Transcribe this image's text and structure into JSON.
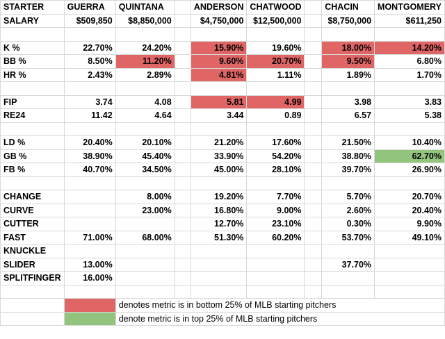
{
  "colors": {
    "bottom25": "#e06666",
    "top25": "#93c47d",
    "gridline": "#d9d9d9"
  },
  "header": {
    "label": "STARTER",
    "pitchers": [
      "GUERRA",
      "QUINTANA",
      "ANDERSON",
      "CHATWOOD",
      "CHACIN",
      "MONTGOMERY"
    ]
  },
  "salary": {
    "label": "SALARY",
    "values": [
      "$509,850",
      "$8,850,000",
      "$4,750,000",
      "$12,500,000",
      "$8,750,000",
      "$611,250"
    ]
  },
  "rows": [
    {
      "label": "K %",
      "values": [
        "22.70%",
        "24.20%",
        "15.90%",
        "19.60%",
        "18.00%",
        "14.20%"
      ],
      "flags": [
        "",
        "",
        "bottom25",
        "",
        "bottom25",
        "bottom25"
      ]
    },
    {
      "label": "BB %",
      "values": [
        "8.50%",
        "11.20%",
        "9.60%",
        "20.70%",
        "9.50%",
        "6.80%"
      ],
      "flags": [
        "",
        "bottom25",
        "bottom25",
        "bottom25",
        "bottom25",
        ""
      ]
    },
    {
      "label": "HR %",
      "values": [
        "2.43%",
        "2.89%",
        "4.81%",
        "1.11%",
        "1.89%",
        "1.70%"
      ],
      "flags": [
        "",
        "",
        "bottom25",
        "",
        "",
        ""
      ]
    },
    {
      "blank": true
    },
    {
      "label": "FIP",
      "values": [
        "3.74",
        "4.08",
        "5.81",
        "4.99",
        "3.98",
        "3.83"
      ],
      "flags": [
        "",
        "",
        "bottom25",
        "bottom25",
        "",
        ""
      ]
    },
    {
      "label": "RE24",
      "values": [
        "11.42",
        "4.64",
        "3.44",
        "0.89",
        "6.57",
        "5.38"
      ],
      "flags": [
        "",
        "",
        "",
        "",
        "",
        ""
      ]
    },
    {
      "blank": true
    },
    {
      "label": "LD %",
      "values": [
        "20.40%",
        "20.10%",
        "21.20%",
        "17.60%",
        "21.50%",
        "10.40%"
      ],
      "flags": [
        "",
        "",
        "",
        "",
        "",
        ""
      ]
    },
    {
      "label": "GB %",
      "values": [
        "38.90%",
        "45.40%",
        "33.90%",
        "54.20%",
        "38.80%",
        "62.70%"
      ],
      "flags": [
        "",
        "",
        "",
        "",
        "",
        "top25"
      ]
    },
    {
      "label": "FB %",
      "values": [
        "40.70%",
        "34.50%",
        "45.00%",
        "28.10%",
        "39.70%",
        "26.90%"
      ],
      "flags": [
        "",
        "",
        "",
        "",
        "",
        ""
      ]
    },
    {
      "blank": true
    },
    {
      "label": "CHANGE",
      "values": [
        "",
        "8.00%",
        "19.20%",
        "7.70%",
        "5.70%",
        "20.70%"
      ],
      "flags": [
        "",
        "",
        "",
        "",
        "",
        ""
      ]
    },
    {
      "label": "CURVE",
      "values": [
        "",
        "23.00%",
        "16.80%",
        "9.00%",
        "2.60%",
        "20.40%"
      ],
      "flags": [
        "",
        "",
        "",
        "",
        "",
        ""
      ]
    },
    {
      "label": "CUTTER",
      "values": [
        "",
        "",
        "12.70%",
        "23.10%",
        "0.30%",
        "9.90%"
      ],
      "flags": [
        "",
        "",
        "",
        "",
        "",
        ""
      ]
    },
    {
      "label": "FAST",
      "values": [
        "71.00%",
        "68.00%",
        "51.30%",
        "60.20%",
        "53.70%",
        "49.10%"
      ],
      "flags": [
        "",
        "",
        "",
        "",
        "",
        ""
      ]
    },
    {
      "label": "KNUCKLE",
      "values": [
        "",
        "",
        "",
        "",
        "",
        ""
      ],
      "flags": [
        "",
        "",
        "",
        "",
        "",
        ""
      ]
    },
    {
      "label": "SLIDER",
      "values": [
        "13.00%",
        "",
        "",
        "",
        "37.70%",
        ""
      ],
      "flags": [
        "",
        "",
        "",
        "",
        "",
        ""
      ]
    },
    {
      "label": "SPLITFINGER",
      "values": [
        "16.00%",
        "",
        "",
        "",
        "",
        ""
      ],
      "flags": [
        "",
        "",
        "",
        "",
        "",
        ""
      ]
    }
  ],
  "legend": {
    "bottom_text": "denotes metric is in bottom 25% of MLB starting pitchers",
    "top_text": "denote metric is in top 25% of MLB starting pitchers"
  }
}
